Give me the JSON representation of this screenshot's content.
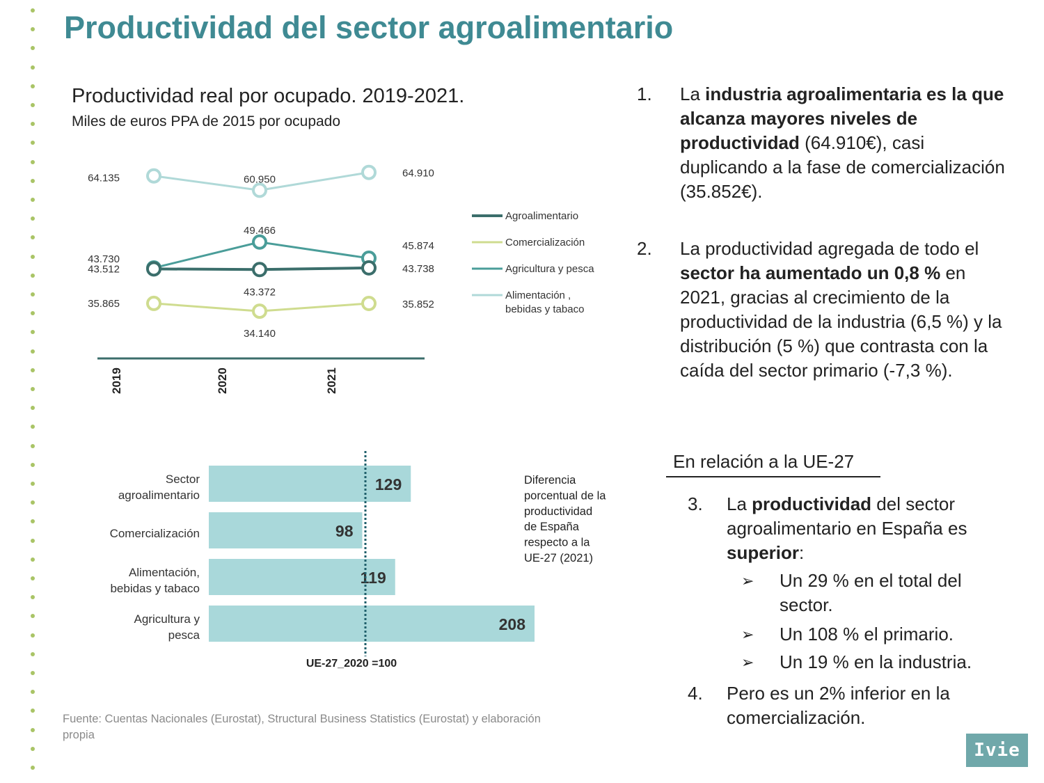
{
  "page_title": "Productividad del sector agroalimentario",
  "line_chart": {
    "title": "Productividad real por ocupado. 2019-2021.",
    "subtitle": "Miles de euros PPA de 2015 por ocupado"
  },
  "bar_chart": {
    "legend_text": [
      "Diferencia",
      "porcentual de la",
      "productividad",
      "de España",
      "respecto a la",
      "UE-27 (2021)"
    ],
    "reference_label": "UE-27_2020 =100"
  },
  "source": "Fuente: Cuentas Nacionales (Eurostat), Structural Business Statistics (Eurostat) y elaboración propia",
  "points": [
    {
      "num": "1.",
      "html": "La <b>industria agroalimentaria es la que alcanza mayores niveles de productividad</b> (64.910€), casi duplicando a la fase de comercialización (35.852€)."
    },
    {
      "num": "2.",
      "html": "La productividad agregada de todo el <b>sector ha aumentado un 0,8 %</b> en 2021, gracias al crecimiento de la productividad de la industria (6,5 %) y la distribución (5 %) que contrasta con la caída del sector primario (-7,3 %)."
    },
    {
      "num": "3.",
      "html": "La <b>productividad</b> del sector agroalimentario en España es <b>superior</b>:"
    },
    {
      "num": "4.",
      "html": "Pero es un 2% inferior en la comercialización."
    }
  ],
  "ue_heading": "En relación a la UE-27",
  "bullets": [
    "Un 29 % en el total del sector.",
    "Un 108 % el primario.",
    "Un 19 % en la industria."
  ],
  "logo": "Ivie",
  "icons": {
    "bullet": "arrow-bullet-icon",
    "decoration": "dot-border"
  },
  "chart_data": [
    {
      "type": "line",
      "x": [
        "2019",
        "2020",
        "2021"
      ],
      "series": [
        {
          "name": "Agroalimentario",
          "values": [
            43.512,
            43.372,
            43.738
          ],
          "labels": [
            "43.512",
            "43.372",
            "43.738"
          ],
          "color": "#3b6e6b"
        },
        {
          "name": "Comercialización",
          "values": [
            35.865,
            34.14,
            35.852
          ],
          "labels": [
            "35.865",
            "34.140",
            "35.852"
          ],
          "color": "#cfdc8f"
        },
        {
          "name": "Agricultura y pesca",
          "values": [
            43.73,
            49.466,
            45.874
          ],
          "labels": [
            "43.730",
            "49.466",
            "45.874"
          ],
          "color": "#4a9d99"
        },
        {
          "name": "Alimentación , bebidas y tabaco",
          "legend_lines": [
            "Alimentación ,",
            "bebidas y tabaco"
          ],
          "values": [
            64.135,
            60.95,
            64.91
          ],
          "labels": [
            "64.135",
            "60.950",
            "64.910"
          ],
          "color": "#b0d9d8"
        }
      ],
      "legend_position": "right",
      "grid": false
    },
    {
      "type": "bar",
      "orientation": "horizontal",
      "categories": [
        {
          "lines": [
            "Sector",
            "agroalimentario"
          ]
        },
        {
          "lines": [
            "Comercialización"
          ]
        },
        {
          "lines": [
            "Alimentación,",
            "bebidas y tabaco"
          ]
        },
        {
          "lines": [
            "Agricultura y",
            "pesca"
          ]
        }
      ],
      "values": [
        129,
        98,
        119,
        208
      ],
      "reference_value": 100,
      "bar_color": "#a9d8da",
      "xlim": [
        0,
        210
      ]
    }
  ]
}
